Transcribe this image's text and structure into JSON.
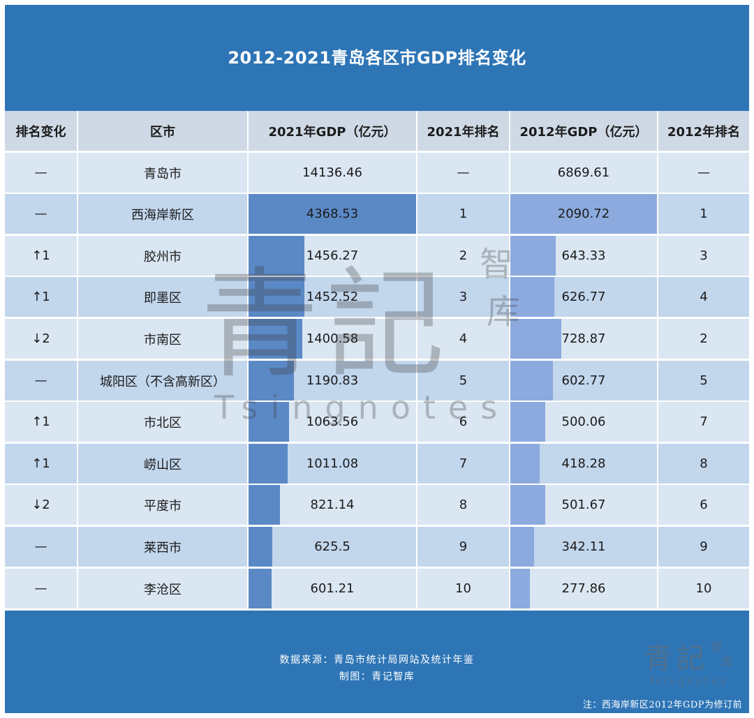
{
  "title": "2012-2021青岛各区市GDP排名变化",
  "colors": {
    "header_bg": "#2e75b6",
    "bar_2021": "#5b89c6",
    "bar_2012": "#8caade",
    "row_light": "#dae6f2",
    "row_dark": "#c2d6ec",
    "header_row": "#cfd9e6"
  },
  "chart_data": {
    "type": "table",
    "columns": [
      "排名变化",
      "区市",
      "2021年GDP（亿元）",
      "2021年排名",
      "2012年GDP（亿元）",
      "2012年排名"
    ],
    "rows": [
      {
        "change": "—",
        "district": "青岛市",
        "gdp2021": "14136.46",
        "rank2021": "—",
        "gdp2012": "6869.61",
        "rank2012": "—",
        "bar": false
      },
      {
        "change": "—",
        "district": "西海岸新区",
        "gdp2021": "4368.53",
        "rank2021": "1",
        "gdp2012": "2090.72",
        "rank2012": "1",
        "bar": true
      },
      {
        "change": "↑1",
        "district": "胶州市",
        "gdp2021": "1456.27",
        "rank2021": "2",
        "gdp2012": "643.33",
        "rank2012": "3",
        "bar": true
      },
      {
        "change": "↑1",
        "district": "即墨区",
        "gdp2021": "1452.52",
        "rank2021": "3",
        "gdp2012": "626.77",
        "rank2012": "4",
        "bar": true
      },
      {
        "change": "↓2",
        "district": "市南区",
        "gdp2021": "1400.58",
        "rank2021": "4",
        "gdp2012": "728.87",
        "rank2012": "2",
        "bar": true
      },
      {
        "change": "—",
        "district": "城阳区（不含高新区）",
        "gdp2021": "1190.83",
        "rank2021": "5",
        "gdp2012": "602.77",
        "rank2012": "5",
        "bar": true
      },
      {
        "change": "↑1",
        "district": "市北区",
        "gdp2021": "1063.56",
        "rank2021": "6",
        "gdp2012": "500.06",
        "rank2012": "7",
        "bar": true
      },
      {
        "change": "↑1",
        "district": "崂山区",
        "gdp2021": "1011.08",
        "rank2021": "7",
        "gdp2012": "418.28",
        "rank2012": "8",
        "bar": true
      },
      {
        "change": "↓2",
        "district": "平度市",
        "gdp2021": "821.14",
        "rank2021": "8",
        "gdp2012": "501.67",
        "rank2012": "6",
        "bar": true
      },
      {
        "change": "—",
        "district": "莱西市",
        "gdp2021": "625.5",
        "rank2021": "9",
        "gdp2012": "342.11",
        "rank2012": "9",
        "bar": true
      },
      {
        "change": "—",
        "district": "李沧区",
        "gdp2021": "601.21",
        "rank2021": "10",
        "gdp2012": "277.86",
        "rank2012": "10",
        "bar": true
      }
    ]
  },
  "watermark": {
    "char1": "青",
    "char2": "記",
    "char3": "智",
    "char4": "库",
    "latin": "Tsingnotes"
  },
  "footer": {
    "source": "数据来源：青岛市统计局网站及统计年鉴",
    "maker": "制图：青记智库",
    "note": "注：西海岸新区2012年GDP为修订前"
  }
}
